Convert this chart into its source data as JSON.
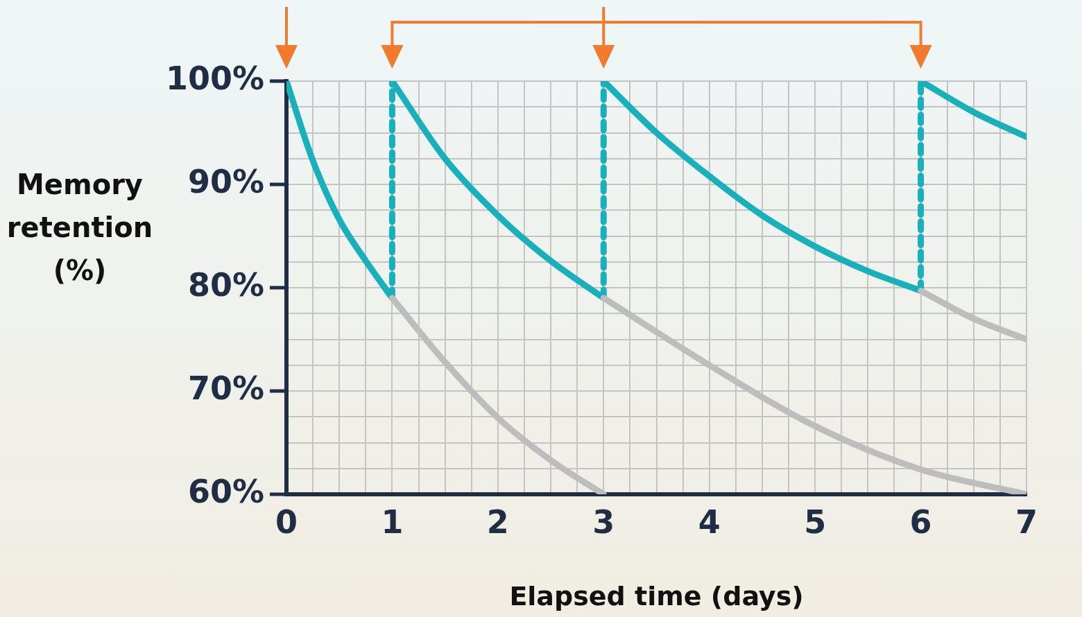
{
  "chart_data": {
    "type": "line",
    "xlabel": "Elapsed time (days)",
    "ylabel": "Memory retention (%)",
    "xlim": [
      0,
      7
    ],
    "ylim": [
      60,
      100
    ],
    "xticks": [
      0,
      {
        "value": 0.25,
        "label": null
      },
      {
        "value": 0.5,
        "label": null
      },
      {
        "value": 0.75,
        "label": null
      },
      1,
      {
        "value": 1.25,
        "label": null
      },
      {
        "value": 1.5,
        "label": null
      },
      {
        "value": 1.75,
        "label": null
      },
      2,
      {
        "value": 2.25,
        "label": null
      },
      {
        "value": 2.5,
        "label": null
      },
      {
        "value": 2.75,
        "label": null
      },
      3,
      {
        "value": 3.25,
        "label": null
      },
      {
        "value": 3.5,
        "label": null
      },
      {
        "value": 3.75,
        "label": null
      },
      4,
      {
        "value": 4.25,
        "label": null
      },
      {
        "value": 4.5,
        "label": null
      },
      {
        "value": 4.75,
        "label": null
      },
      5,
      {
        "value": 5.25,
        "label": null
      },
      {
        "value": 5.5,
        "label": null
      },
      {
        "value": 5.75,
        "label": null
      },
      6,
      {
        "value": 6.25,
        "label": null
      },
      {
        "value": 6.5,
        "label": null
      },
      {
        "value": 6.75,
        "label": null
      },
      7
    ],
    "yticks": [
      {
        "value": 60,
        "label": "60%"
      },
      {
        "value": 62.5,
        "label": null
      },
      {
        "value": 65,
        "label": null
      },
      {
        "value": 67.5,
        "label": null
      },
      {
        "value": 70,
        "label": "70%"
      },
      {
        "value": 72.5,
        "label": null
      },
      {
        "value": 75,
        "label": null
      },
      {
        "value": 77.5,
        "label": null
      },
      {
        "value": 80,
        "label": "80%"
      },
      {
        "value": 82.5,
        "label": null
      },
      {
        "value": 85,
        "label": null
      },
      {
        "value": 87.5,
        "label": null
      },
      {
        "value": 90,
        "label": "90%"
      },
      {
        "value": 92.5,
        "label": null
      },
      {
        "value": 95,
        "label": null
      },
      {
        "value": 97.5,
        "label": null
      },
      {
        "value": 100,
        "label": "100%"
      }
    ],
    "grid": true,
    "legend": false,
    "marker": "none",
    "series": [
      {
        "color": "#bdbdbd",
        "x": [
          1,
          1.5,
          2,
          2.5,
          3
        ],
        "values": [
          79,
          72.8,
          67.4,
          63.3,
          60
        ]
      },
      {
        "color": "#bdbdbd",
        "x": [
          3,
          4,
          5,
          6,
          7
        ],
        "values": [
          79,
          72.5,
          66.6,
          62.4,
          60
        ]
      },
      {
        "color": "#bdbdbd",
        "x": [
          6,
          6.5,
          7
        ],
        "values": [
          79.7,
          77,
          75
        ]
      },
      {
        "color": "#17b0bb",
        "x": [
          0,
          0.25,
          0.5,
          0.75,
          1
        ],
        "values": [
          100,
          92.3,
          86.6,
          82.6,
          79
        ]
      },
      {
        "color": "#17b0bb",
        "x": [
          1,
          1.5,
          2,
          2.5,
          3
        ],
        "values": [
          100,
          92.5,
          87,
          82.6,
          79
        ]
      },
      {
        "color": "#17b0bb",
        "x": [
          3,
          3.5,
          4,
          4.5,
          5,
          5.5,
          6
        ],
        "values": [
          100,
          95,
          90.8,
          87,
          84,
          81.6,
          79.7
        ]
      },
      {
        "color": "#17b0bb",
        "x": [
          6,
          6.5,
          7
        ],
        "values": [
          100,
          97,
          94.6
        ]
      },
      {
        "color": "#17b0bb",
        "line_style": "dashed",
        "x": [
          1,
          1
        ],
        "values": [
          79,
          100
        ]
      },
      {
        "color": "#17b0bb",
        "line_style": "dashed",
        "x": [
          3,
          3
        ],
        "values": [
          79,
          100
        ]
      },
      {
        "color": "#17b0bb",
        "line_style": "dashed",
        "x": [
          6,
          6
        ],
        "values": [
          79.7,
          100
        ]
      }
    ]
  }
}
